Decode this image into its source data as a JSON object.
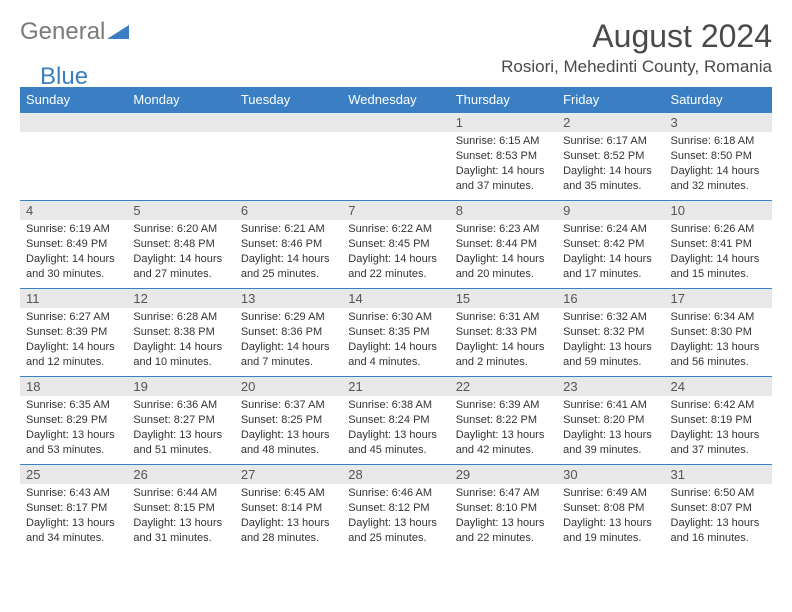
{
  "logo": {
    "part1": "General",
    "part2": "Blue"
  },
  "title": "August 2024",
  "location": "Rosiori, Mehedinti County, Romania",
  "colors": {
    "header_bg": "#3a7fc4",
    "daynum_bg": "#e8e8e8",
    "text": "#333333",
    "title_text": "#4a4a4a"
  },
  "day_headers": [
    "Sunday",
    "Monday",
    "Tuesday",
    "Wednesday",
    "Thursday",
    "Friday",
    "Saturday"
  ],
  "weeks": [
    [
      {
        "n": "",
        "sr": "",
        "ss": "",
        "dl": ""
      },
      {
        "n": "",
        "sr": "",
        "ss": "",
        "dl": ""
      },
      {
        "n": "",
        "sr": "",
        "ss": "",
        "dl": ""
      },
      {
        "n": "",
        "sr": "",
        "ss": "",
        "dl": ""
      },
      {
        "n": "1",
        "sr": "Sunrise: 6:15 AM",
        "ss": "Sunset: 8:53 PM",
        "dl": "Daylight: 14 hours and 37 minutes."
      },
      {
        "n": "2",
        "sr": "Sunrise: 6:17 AM",
        "ss": "Sunset: 8:52 PM",
        "dl": "Daylight: 14 hours and 35 minutes."
      },
      {
        "n": "3",
        "sr": "Sunrise: 6:18 AM",
        "ss": "Sunset: 8:50 PM",
        "dl": "Daylight: 14 hours and 32 minutes."
      }
    ],
    [
      {
        "n": "4",
        "sr": "Sunrise: 6:19 AM",
        "ss": "Sunset: 8:49 PM",
        "dl": "Daylight: 14 hours and 30 minutes."
      },
      {
        "n": "5",
        "sr": "Sunrise: 6:20 AM",
        "ss": "Sunset: 8:48 PM",
        "dl": "Daylight: 14 hours and 27 minutes."
      },
      {
        "n": "6",
        "sr": "Sunrise: 6:21 AM",
        "ss": "Sunset: 8:46 PM",
        "dl": "Daylight: 14 hours and 25 minutes."
      },
      {
        "n": "7",
        "sr": "Sunrise: 6:22 AM",
        "ss": "Sunset: 8:45 PM",
        "dl": "Daylight: 14 hours and 22 minutes."
      },
      {
        "n": "8",
        "sr": "Sunrise: 6:23 AM",
        "ss": "Sunset: 8:44 PM",
        "dl": "Daylight: 14 hours and 20 minutes."
      },
      {
        "n": "9",
        "sr": "Sunrise: 6:24 AM",
        "ss": "Sunset: 8:42 PM",
        "dl": "Daylight: 14 hours and 17 minutes."
      },
      {
        "n": "10",
        "sr": "Sunrise: 6:26 AM",
        "ss": "Sunset: 8:41 PM",
        "dl": "Daylight: 14 hours and 15 minutes."
      }
    ],
    [
      {
        "n": "11",
        "sr": "Sunrise: 6:27 AM",
        "ss": "Sunset: 8:39 PM",
        "dl": "Daylight: 14 hours and 12 minutes."
      },
      {
        "n": "12",
        "sr": "Sunrise: 6:28 AM",
        "ss": "Sunset: 8:38 PM",
        "dl": "Daylight: 14 hours and 10 minutes."
      },
      {
        "n": "13",
        "sr": "Sunrise: 6:29 AM",
        "ss": "Sunset: 8:36 PM",
        "dl": "Daylight: 14 hours and 7 minutes."
      },
      {
        "n": "14",
        "sr": "Sunrise: 6:30 AM",
        "ss": "Sunset: 8:35 PM",
        "dl": "Daylight: 14 hours and 4 minutes."
      },
      {
        "n": "15",
        "sr": "Sunrise: 6:31 AM",
        "ss": "Sunset: 8:33 PM",
        "dl": "Daylight: 14 hours and 2 minutes."
      },
      {
        "n": "16",
        "sr": "Sunrise: 6:32 AM",
        "ss": "Sunset: 8:32 PM",
        "dl": "Daylight: 13 hours and 59 minutes."
      },
      {
        "n": "17",
        "sr": "Sunrise: 6:34 AM",
        "ss": "Sunset: 8:30 PM",
        "dl": "Daylight: 13 hours and 56 minutes."
      }
    ],
    [
      {
        "n": "18",
        "sr": "Sunrise: 6:35 AM",
        "ss": "Sunset: 8:29 PM",
        "dl": "Daylight: 13 hours and 53 minutes."
      },
      {
        "n": "19",
        "sr": "Sunrise: 6:36 AM",
        "ss": "Sunset: 8:27 PM",
        "dl": "Daylight: 13 hours and 51 minutes."
      },
      {
        "n": "20",
        "sr": "Sunrise: 6:37 AM",
        "ss": "Sunset: 8:25 PM",
        "dl": "Daylight: 13 hours and 48 minutes."
      },
      {
        "n": "21",
        "sr": "Sunrise: 6:38 AM",
        "ss": "Sunset: 8:24 PM",
        "dl": "Daylight: 13 hours and 45 minutes."
      },
      {
        "n": "22",
        "sr": "Sunrise: 6:39 AM",
        "ss": "Sunset: 8:22 PM",
        "dl": "Daylight: 13 hours and 42 minutes."
      },
      {
        "n": "23",
        "sr": "Sunrise: 6:41 AM",
        "ss": "Sunset: 8:20 PM",
        "dl": "Daylight: 13 hours and 39 minutes."
      },
      {
        "n": "24",
        "sr": "Sunrise: 6:42 AM",
        "ss": "Sunset: 8:19 PM",
        "dl": "Daylight: 13 hours and 37 minutes."
      }
    ],
    [
      {
        "n": "25",
        "sr": "Sunrise: 6:43 AM",
        "ss": "Sunset: 8:17 PM",
        "dl": "Daylight: 13 hours and 34 minutes."
      },
      {
        "n": "26",
        "sr": "Sunrise: 6:44 AM",
        "ss": "Sunset: 8:15 PM",
        "dl": "Daylight: 13 hours and 31 minutes."
      },
      {
        "n": "27",
        "sr": "Sunrise: 6:45 AM",
        "ss": "Sunset: 8:14 PM",
        "dl": "Daylight: 13 hours and 28 minutes."
      },
      {
        "n": "28",
        "sr": "Sunrise: 6:46 AM",
        "ss": "Sunset: 8:12 PM",
        "dl": "Daylight: 13 hours and 25 minutes."
      },
      {
        "n": "29",
        "sr": "Sunrise: 6:47 AM",
        "ss": "Sunset: 8:10 PM",
        "dl": "Daylight: 13 hours and 22 minutes."
      },
      {
        "n": "30",
        "sr": "Sunrise: 6:49 AM",
        "ss": "Sunset: 8:08 PM",
        "dl": "Daylight: 13 hours and 19 minutes."
      },
      {
        "n": "31",
        "sr": "Sunrise: 6:50 AM",
        "ss": "Sunset: 8:07 PM",
        "dl": "Daylight: 13 hours and 16 minutes."
      }
    ]
  ]
}
